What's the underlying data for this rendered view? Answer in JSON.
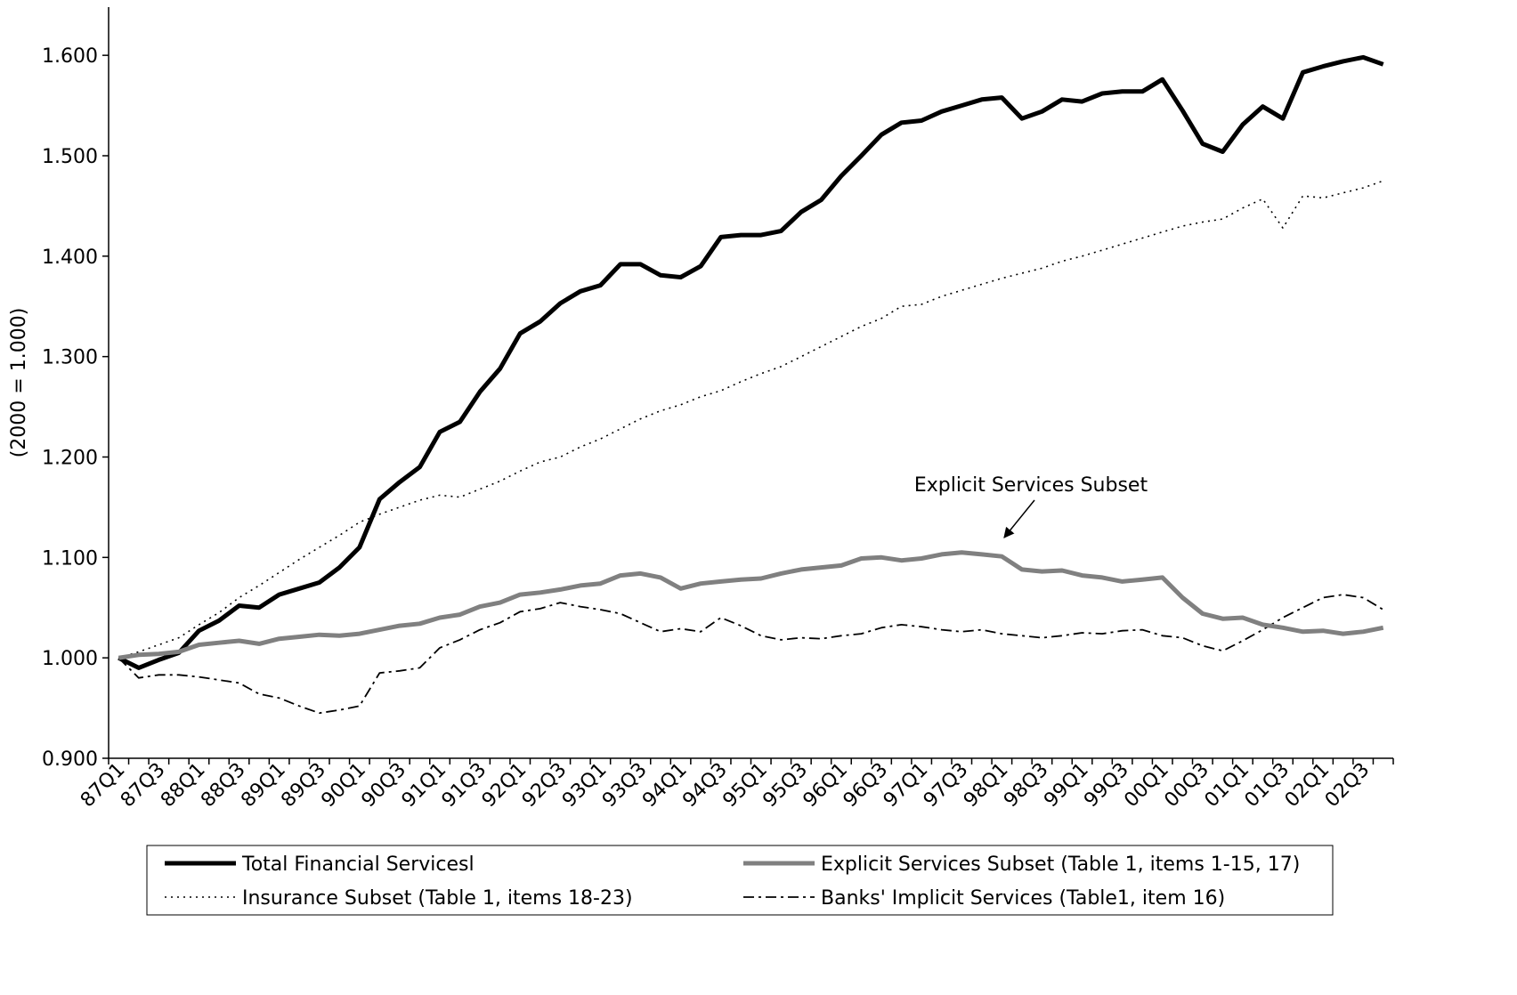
{
  "chart_data": {
    "type": "line",
    "y_label": "(2000 = 1.000)",
    "categories": [
      "87Q1",
      null,
      "87Q3",
      null,
      "88Q1",
      null,
      "88Q3",
      null,
      "89Q1",
      null,
      "89Q3",
      null,
      "90Q1",
      null,
      "90Q3",
      null,
      "91Q1",
      null,
      "91Q3",
      null,
      "92Q1",
      null,
      "92Q3",
      null,
      "93Q1",
      null,
      "93Q3",
      null,
      "94Q1",
      null,
      "94Q3",
      null,
      "95Q1",
      null,
      "95Q3",
      null,
      "96Q1",
      null,
      "96Q3",
      null,
      "97Q1",
      null,
      "97Q3",
      null,
      "98Q1",
      null,
      "98Q3",
      null,
      "99Q1",
      null,
      "99Q3",
      null,
      "00Q1",
      null,
      "00Q3",
      null,
      "01Q1",
      null,
      "01Q3",
      null,
      "02Q1",
      null,
      "02Q3",
      null
    ],
    "series": [
      {
        "name": "Total Financial Servicesl",
        "color": "#000000",
        "style": "solid",
        "width": 5,
        "values": [
          1.0,
          0.99,
          0.998,
          1.005,
          1.027,
          1.037,
          1.052,
          1.05,
          1.063,
          1.069,
          1.075,
          1.09,
          1.11,
          1.158,
          1.175,
          1.19,
          1.225,
          1.235,
          1.265,
          1.288,
          1.323,
          1.335,
          1.353,
          1.365,
          1.371,
          1.392,
          1.392,
          1.381,
          1.379,
          1.39,
          1.419,
          1.421,
          1.421,
          1.425,
          1.444,
          1.456,
          1.48,
          1.5,
          1.521,
          1.533,
          1.535,
          1.544,
          1.55,
          1.556,
          1.558,
          1.537,
          1.544,
          1.556,
          1.554,
          1.562,
          1.564,
          1.564,
          1.576,
          1.545,
          1.512,
          1.504,
          1.531,
          1.549,
          1.537,
          1.583,
          1.589,
          1.594,
          1.598,
          1.591
        ]
      },
      {
        "name": "Explicit Services Subset (Table 1, items  1-15, 17)",
        "color": "#808080",
        "style": "solid",
        "width": 5,
        "values": [
          1.0,
          1.003,
          1.004,
          1.006,
          1.013,
          1.015,
          1.017,
          1.014,
          1.019,
          1.021,
          1.023,
          1.022,
          1.024,
          1.028,
          1.032,
          1.034,
          1.04,
          1.043,
          1.051,
          1.055,
          1.063,
          1.065,
          1.068,
          1.072,
          1.074,
          1.082,
          1.084,
          1.08,
          1.069,
          1.074,
          1.076,
          1.078,
          1.079,
          1.084,
          1.088,
          1.09,
          1.092,
          1.099,
          1.1,
          1.097,
          1.099,
          1.103,
          1.105,
          1.103,
          1.101,
          1.088,
          1.086,
          1.087,
          1.082,
          1.08,
          1.076,
          1.078,
          1.08,
          1.06,
          1.044,
          1.039,
          1.04,
          1.033,
          1.03,
          1.026,
          1.027,
          1.024,
          1.026,
          1.03
        ]
      },
      {
        "name": "Insurance Subset (Table 1, items 18-23)",
        "color": "#000000",
        "style": "dotted",
        "width": 1.6,
        "values": [
          1.0,
          1.006,
          1.013,
          1.02,
          1.033,
          1.045,
          1.06,
          1.072,
          1.085,
          1.098,
          1.11,
          1.122,
          1.135,
          1.143,
          1.15,
          1.157,
          1.162,
          1.16,
          1.168,
          1.176,
          1.186,
          1.195,
          1.2,
          1.21,
          1.218,
          1.228,
          1.238,
          1.246,
          1.252,
          1.26,
          1.266,
          1.275,
          1.283,
          1.29,
          1.3,
          1.31,
          1.32,
          1.33,
          1.338,
          1.35,
          1.352,
          1.36,
          1.366,
          1.372,
          1.378,
          1.383,
          1.388,
          1.395,
          1.4,
          1.406,
          1.412,
          1.418,
          1.424,
          1.43,
          1.434,
          1.437,
          1.448,
          1.457,
          1.428,
          1.46,
          1.458,
          1.463,
          1.468,
          1.475
        ]
      },
      {
        "name": "Banks' Implicit Services (Table1, item 16)",
        "color": "#000000",
        "style": "dashdot",
        "width": 1.8,
        "values": [
          1.0,
          0.98,
          0.983,
          0.983,
          0.981,
          0.978,
          0.975,
          0.964,
          0.96,
          0.952,
          0.945,
          0.948,
          0.952,
          0.985,
          0.987,
          0.99,
          1.01,
          1.018,
          1.028,
          1.035,
          1.046,
          1.049,
          1.055,
          1.051,
          1.048,
          1.044,
          1.035,
          1.026,
          1.029,
          1.026,
          1.04,
          1.032,
          1.022,
          1.018,
          1.02,
          1.019,
          1.022,
          1.024,
          1.03,
          1.033,
          1.031,
          1.028,
          1.026,
          1.028,
          1.024,
          1.022,
          1.02,
          1.022,
          1.025,
          1.024,
          1.027,
          1.028,
          1.022,
          1.02,
          1.012,
          1.007,
          1.017,
          1.028,
          1.04,
          1.05,
          1.06,
          1.063,
          1.06,
          1.048
        ]
      }
    ],
    "ylim": [
      0.9,
      1.648
    ],
    "yticks": [
      {
        "value": 0.9,
        "label": "0.900"
      },
      {
        "value": 1.0,
        "label": "1.000"
      },
      {
        "value": 1.1,
        "label": "1.100"
      },
      {
        "value": 1.2,
        "label": "1.200"
      },
      {
        "value": 1.3,
        "label": "1.300"
      },
      {
        "value": 1.4,
        "label": "1.400"
      },
      {
        "value": 1.5,
        "label": "1.500"
      },
      {
        "value": 1.6,
        "label": "1.600"
      }
    ],
    "grid": false,
    "legend": "bottom",
    "annotations": [
      {
        "text": "Explicit Services Subset"
      }
    ]
  }
}
